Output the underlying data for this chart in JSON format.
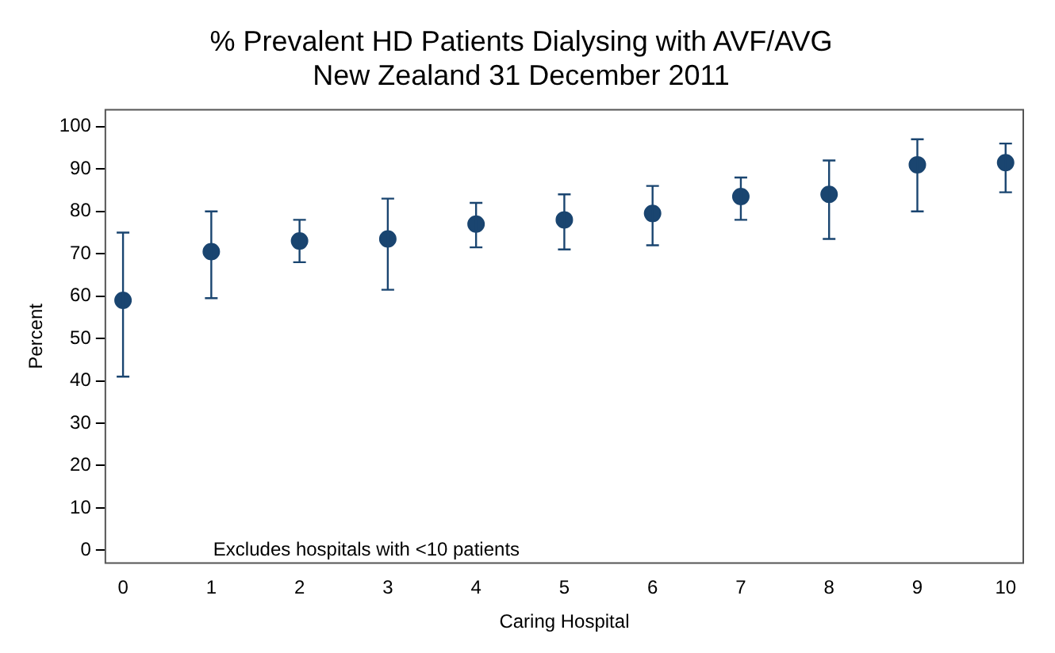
{
  "chart_data": {
    "type": "scatter",
    "title": "% Prevalent HD Patients Dialysing with AVF/AVG\nNew Zealand 31 December 2011",
    "xlabel": "Caring Hospital",
    "ylabel": "Percent",
    "annotations": [
      "Excludes hospitals with <10 patients"
    ],
    "x": [
      0,
      1,
      2,
      3,
      4,
      5,
      6,
      7,
      8,
      9,
      10
    ],
    "series": [
      {
        "color": "#1a4570",
        "values": [
          59,
          70.5,
          73,
          73.5,
          77,
          78,
          79.5,
          83.5,
          84,
          91,
          91.5
        ],
        "errors": [
          [
            41,
            75
          ],
          [
            59.5,
            80
          ],
          [
            68,
            78
          ],
          [
            61.5,
            83
          ],
          [
            71.5,
            82
          ],
          [
            71,
            84
          ],
          [
            72,
            86
          ],
          [
            78,
            88
          ],
          [
            73.5,
            92
          ],
          [
            80,
            97
          ],
          [
            84.5,
            96
          ]
        ]
      }
    ],
    "xlim": [
      -0.2,
      10.2
    ],
    "xticks": [
      0,
      1,
      2,
      3,
      4,
      5,
      6,
      7,
      8,
      9,
      10
    ],
    "ylim": [
      -3,
      104
    ],
    "yticks": [
      0,
      10,
      20,
      30,
      40,
      50,
      60,
      70,
      80,
      90,
      100
    ],
    "grid": false,
    "legend": false,
    "marker": "circle"
  }
}
